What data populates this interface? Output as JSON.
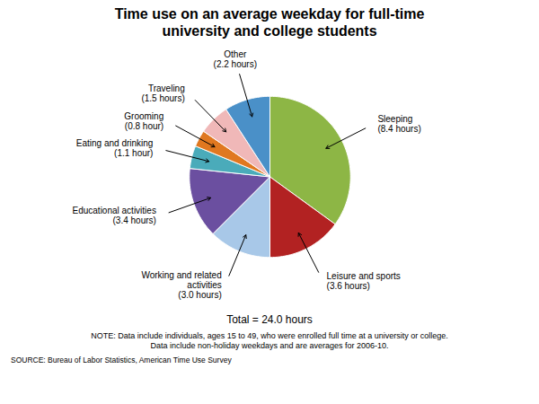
{
  "chart_data": {
    "type": "pie",
    "title": "Time use on an average weekday for full-time\nuniversity and college students",
    "categories": [
      "Sleeping\n(8.4 hours)",
      "Leisure and sports\n(3.6 hours)",
      "Working and related\nactivities\n(3.0 hours)",
      "Educational activities\n(3.4 hours)",
      "Eating and drinking\n(1.1 hour)",
      "Grooming\n(0.8 hour)",
      "Traveling\n(1.5 hours)",
      "Other\n(2.2 hours)"
    ],
    "values": [
      8.4,
      3.6,
      3.0,
      3.4,
      1.1,
      0.8,
      1.5,
      2.2
    ],
    "colors": [
      "#8DB645",
      "#B22222",
      "#A8C8E8",
      "#6B4FA0",
      "#4AABBA",
      "#E07820",
      "#F0B8B8",
      "#4A90C8"
    ],
    "annotations": [
      "Total = 24.0 hours"
    ],
    "note": "NOTE: Data include individuals, ages 15 to 49, who were enrolled full time at a university or college.\nData include non-holiday weekdays and are averages for 2006-10.",
    "source": "SOURCE: Bureau of Labor Statistics, American Time Use Survey"
  }
}
